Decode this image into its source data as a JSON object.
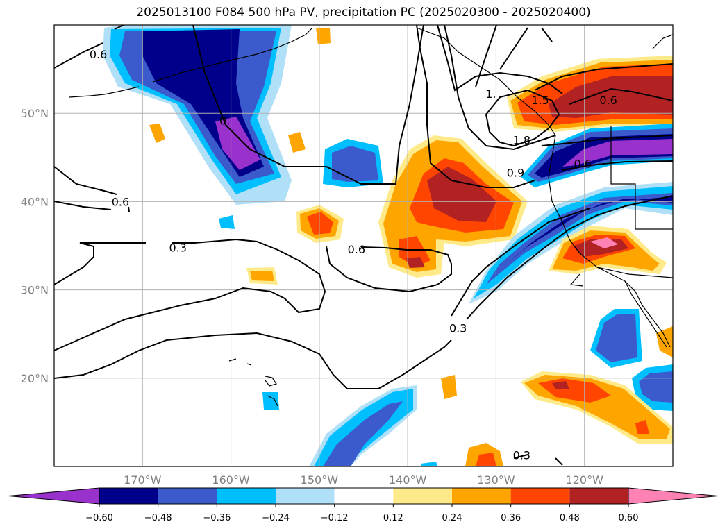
{
  "title": "2025013100 F084 500 hPa PV, precipitation PC (2025020300 - 2025020400)",
  "map": {
    "lon_range": [
      -180,
      -110
    ],
    "lat_range": [
      10,
      60
    ],
    "lon_ticks": [
      {
        "lon": -170,
        "label": "170°W"
      },
      {
        "lon": -160,
        "label": "160°W"
      },
      {
        "lon": -150,
        "label": "150°W"
      },
      {
        "lon": -140,
        "label": "140°W"
      },
      {
        "lon": -130,
        "label": "130°W"
      },
      {
        "lon": -120,
        "label": "120°W"
      }
    ],
    "lat_ticks": [
      {
        "lat": 50,
        "label": "50°N"
      },
      {
        "lat": 40,
        "label": "40°N"
      },
      {
        "lat": 30,
        "label": "30°N"
      },
      {
        "lat": 20,
        "label": "20°N"
      }
    ],
    "grid": true,
    "contour_labels": [
      {
        "text": "0.6",
        "lon": -175,
        "lat": 56.7
      },
      {
        "text": "0.6",
        "lon": -172.5,
        "lat": 40.0
      },
      {
        "text": "0.3",
        "lon": -166,
        "lat": 34.8
      },
      {
        "text": "0.6",
        "lon": -145.8,
        "lat": 34.6
      },
      {
        "text": "0.3",
        "lon": -134.3,
        "lat": 25.7
      },
      {
        "text": "0.3",
        "lon": -127.1,
        "lat": 11.3
      },
      {
        "text": "1.8",
        "lon": -127.1,
        "lat": 47.0
      },
      {
        "text": "0.9",
        "lon": -127.8,
        "lat": 43.3
      },
      {
        "text": "0.6",
        "lon": -120.2,
        "lat": 44.3
      },
      {
        "text": "0.6",
        "lon": -117.3,
        "lat": 51.5
      },
      {
        "text": "1.5",
        "lon": -125.0,
        "lat": 51.5
      },
      {
        "text": "1.",
        "lon": -130.6,
        "lat": 52.2
      },
      {
        "text": "0.",
        "lon": -160.7,
        "lat": 49.2
      }
    ]
  },
  "colorbar": {
    "colors": [
      "#9932cc",
      "#00008b",
      "#3b5bcc",
      "#00bfff",
      "#b0e0f8",
      "#ffffff",
      "#ffea8a",
      "#ffa500",
      "#ff4500",
      "#b22222",
      "#ff82b4"
    ],
    "labels": [
      "−0.60",
      "−0.48",
      "−0.36",
      "−0.24",
      "−0.12",
      "0.12",
      "0.24",
      "0.36",
      "0.48",
      "0.60"
    ]
  }
}
